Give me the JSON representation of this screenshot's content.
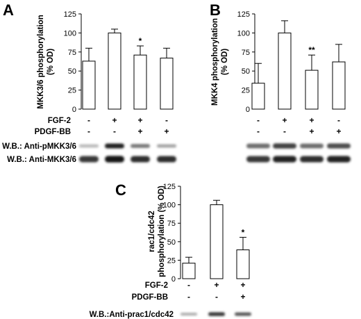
{
  "chart_data": [
    {
      "type": "bar",
      "panel": "A",
      "ylabel": [
        "MKK3/6 phosphorylation",
        "(% OD)"
      ],
      "ylim": [
        0,
        125
      ],
      "yticks": [
        0,
        25,
        50,
        75,
        100,
        125
      ],
      "values": [
        63,
        100,
        71,
        67
      ],
      "errors": [
        17,
        5,
        12,
        13
      ],
      "significance": [
        "",
        "",
        "*",
        ""
      ],
      "conditions": [
        {
          "label": "FGF-2",
          "signs": [
            "-",
            "+",
            "+",
            "-"
          ]
        },
        {
          "label": "PDGF-BB",
          "signs": [
            "-",
            "-",
            "+",
            "+"
          ]
        }
      ],
      "blots": [
        {
          "label": "W.B.: Anti-pMKK3/6",
          "intensity": [
            0.25,
            0.95,
            0.55,
            0.35
          ]
        },
        {
          "label": "W.B.: Anti-MKK3/6",
          "intensity": [
            0.85,
            1.0,
            0.9,
            0.9
          ]
        }
      ]
    },
    {
      "type": "bar",
      "panel": "B",
      "ylabel": [
        "MKK4 phosphorylation",
        "(% OD)"
      ],
      "ylim": [
        0,
        125
      ],
      "yticks": [
        0,
        25,
        50,
        75,
        100,
        125
      ],
      "values": [
        34,
        100,
        51,
        62
      ],
      "errors": [
        26,
        16,
        20,
        23
      ],
      "significance": [
        "",
        "",
        "**",
        ""
      ],
      "conditions": [
        {
          "label": "",
          "signs": [
            "-",
            "+",
            "+",
            "-"
          ]
        },
        {
          "label": "",
          "signs": [
            "-",
            "-",
            "+",
            "+"
          ]
        }
      ],
      "blots": [
        {
          "label": "",
          "intensity": [
            0.6,
            0.8,
            0.6,
            0.75
          ]
        },
        {
          "label": "",
          "intensity": [
            0.85,
            0.95,
            0.9,
            0.95
          ]
        }
      ]
    },
    {
      "type": "bar",
      "panel": "C",
      "ylabel": [
        "rac1/cdc42",
        "phosphorylation (% OD)"
      ],
      "ylim": [
        0,
        125
      ],
      "yticks": [
        0,
        25,
        50,
        75,
        100,
        125
      ],
      "values": [
        21,
        100,
        39
      ],
      "errors": [
        8,
        6,
        17
      ],
      "significance": [
        "",
        "",
        "*"
      ],
      "conditions": [
        {
          "label": "FGF-2",
          "signs": [
            "-",
            "+",
            "+"
          ]
        },
        {
          "label": "PDGF-BB",
          "signs": [
            "-",
            "-",
            "+"
          ]
        }
      ],
      "blots": [
        {
          "label": "W.B.:Anti-prac1/cdc42",
          "intensity": [
            0.3,
            0.85,
            0.7
          ]
        }
      ]
    }
  ]
}
